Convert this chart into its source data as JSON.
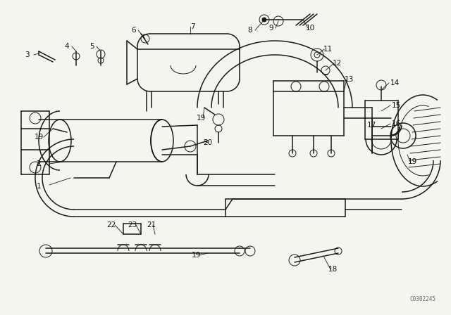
{
  "bg_color": "#f5f5f0",
  "line_color": "#1a1a1a",
  "label_color": "#111111",
  "watermark": "C0302245",
  "lw_main": 1.1,
  "lw_thin": 0.7,
  "lw_thick": 1.6,
  "label_fs": 7.5
}
